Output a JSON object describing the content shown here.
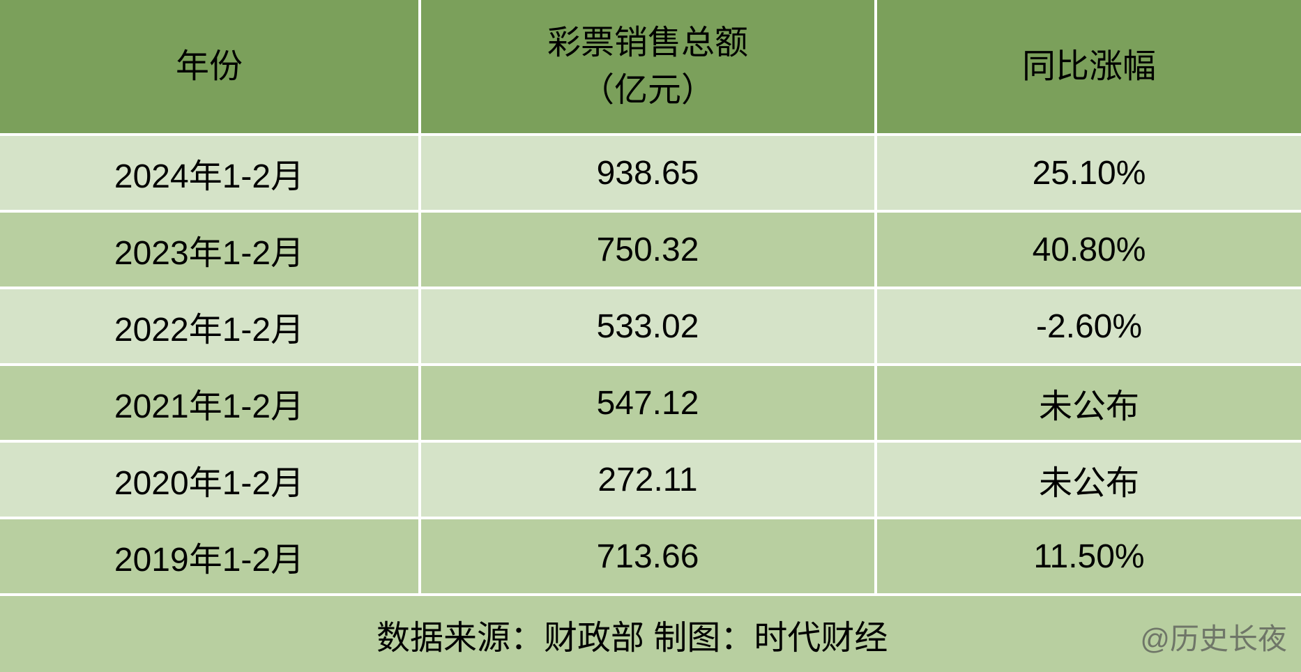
{
  "table": {
    "header_bg": "#7ba05b",
    "row_odd_bg": "#d5e3c8",
    "row_even_bg": "#b8cfa0",
    "footer_bg": "#b8cfa0",
    "text_color": "#000000",
    "border_color": "#ffffff",
    "font_size": 48,
    "columns": [
      {
        "label_line1": "年份",
        "label_line2": ""
      },
      {
        "label_line1": "彩票销售总额",
        "label_line2": "（亿元）"
      },
      {
        "label_line1": "同比涨幅",
        "label_line2": ""
      }
    ],
    "rows": [
      {
        "year": "2024年1-2月",
        "sales": "938.65",
        "growth": "25.10%"
      },
      {
        "year": "2023年1-2月",
        "sales": "750.32",
        "growth": "40.80%"
      },
      {
        "year": "2022年1-2月",
        "sales": "533.02",
        "growth": "-2.60%"
      },
      {
        "year": "2021年1-2月",
        "sales": "547.12",
        "growth": "未公布"
      },
      {
        "year": "2020年1-2月",
        "sales": "272.11",
        "growth": "未公布"
      },
      {
        "year": "2019年1-2月",
        "sales": "713.66",
        "growth": "11.50%"
      }
    ],
    "footer_text": "数据来源：财政部 制图：时代财经",
    "watermark": "@历史长夜"
  }
}
